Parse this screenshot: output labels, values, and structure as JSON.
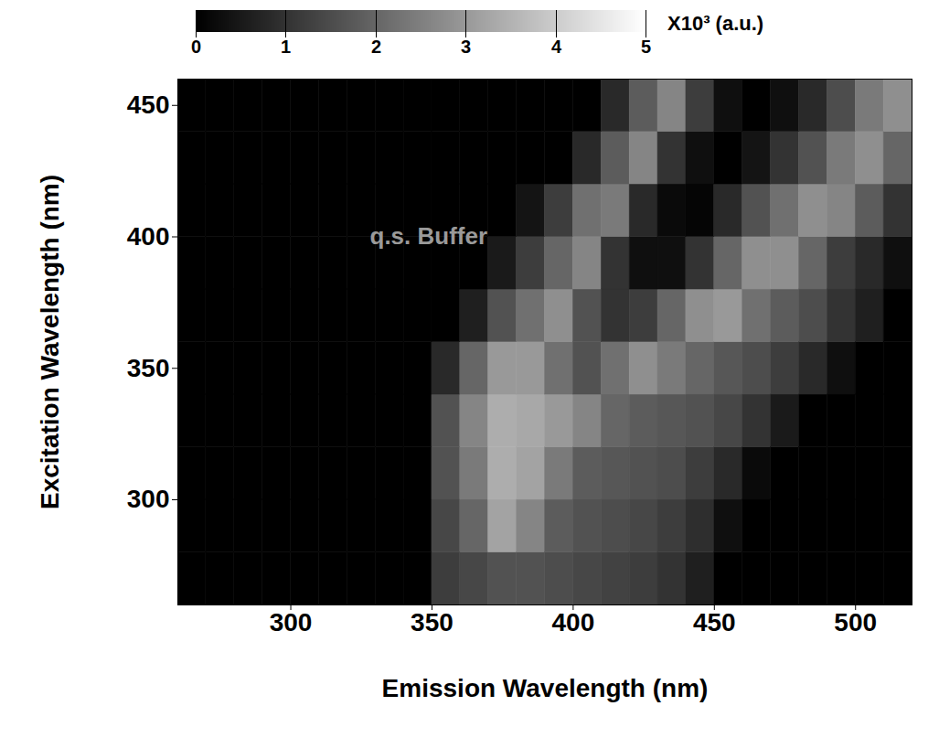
{
  "chart_data": {
    "type": "heatmap",
    "x_label": "Emission Wavelength (nm)",
    "y_label": "Excitation Wavelength (nm)",
    "xlim": [
      260,
      520
    ],
    "ylim": [
      260,
      460
    ],
    "xticks": [
      300,
      350,
      400,
      450,
      500
    ],
    "yticks": [
      300,
      350,
      400,
      450
    ],
    "emission": [
      265,
      275,
      285,
      295,
      305,
      315,
      325,
      335,
      345,
      355,
      365,
      375,
      385,
      395,
      405,
      415,
      425,
      435,
      445,
      455,
      465,
      475,
      485,
      495,
      505,
      515
    ],
    "excitation": [
      270,
      290,
      310,
      330,
      350,
      370,
      390,
      410,
      430,
      450
    ],
    "values": [
      [
        0,
        0,
        0,
        0,
        0,
        0,
        0,
        0,
        0,
        1.2,
        1.4,
        1.6,
        1.6,
        1.5,
        1.4,
        1.3,
        1.2,
        1.0,
        0.6,
        0,
        0,
        0,
        0,
        0,
        0,
        0
      ],
      [
        0,
        0,
        0,
        0,
        0,
        0,
        0,
        0,
        0,
        1.4,
        2.0,
        3.2,
        2.6,
        1.8,
        1.6,
        1.5,
        1.4,
        1.2,
        0.9,
        0.3,
        0,
        0,
        0,
        0,
        0,
        0
      ],
      [
        0,
        0,
        0,
        0,
        0,
        0,
        0,
        0,
        0,
        1.6,
        2.4,
        3.4,
        3.2,
        2.4,
        1.8,
        1.7,
        1.6,
        1.5,
        1.2,
        0.8,
        0.2,
        0,
        0,
        0,
        0,
        0
      ],
      [
        0,
        0,
        0,
        0,
        0,
        0,
        0,
        0,
        0,
        1.6,
        2.6,
        3.4,
        3.3,
        3.0,
        2.6,
        2.0,
        1.8,
        1.7,
        1.6,
        1.4,
        1.0,
        0.5,
        0,
        0,
        0,
        0
      ],
      [
        0,
        0,
        0,
        0,
        0,
        0,
        0,
        0,
        0,
        0.8,
        2.0,
        3.0,
        3.0,
        2.2,
        1.6,
        2.2,
        2.8,
        2.4,
        2.0,
        1.7,
        1.5,
        1.2,
        0.8,
        0.3,
        0,
        0
      ],
      [
        0,
        0,
        0,
        0,
        0,
        0,
        0,
        0,
        0,
        0,
        0.6,
        1.6,
        2.2,
        2.8,
        1.6,
        1.0,
        1.2,
        2.0,
        2.8,
        3.0,
        2.2,
        1.8,
        1.5,
        1.0,
        0.6,
        0
      ],
      [
        0,
        0,
        0,
        0,
        0,
        0,
        0,
        0,
        0,
        0,
        0,
        0.5,
        1.2,
        2.0,
        2.6,
        1.0,
        0.3,
        0.3,
        1.0,
        2.0,
        2.8,
        2.8,
        2.0,
        1.2,
        0.8,
        0.3
      ],
      [
        0,
        0,
        0,
        0,
        0,
        0,
        0,
        0,
        0,
        0,
        0,
        0,
        0.4,
        1.2,
        2.2,
        2.4,
        0.8,
        0.2,
        0.1,
        0.8,
        1.6,
        2.2,
        2.8,
        2.6,
        1.8,
        1.0
      ],
      [
        0,
        0,
        0,
        0,
        0,
        0,
        0,
        0,
        0,
        0,
        0,
        0,
        0,
        0,
        0.8,
        1.8,
        2.6,
        1.0,
        0.3,
        0,
        0.4,
        1.0,
        1.6,
        2.4,
        2.8,
        2.0
      ],
      [
        0,
        0,
        0,
        0,
        0,
        0,
        0,
        0,
        0,
        0,
        0,
        0,
        0,
        0,
        0,
        0.8,
        1.8,
        2.6,
        1.2,
        0.3,
        0,
        0.3,
        0.8,
        1.5,
        2.4,
        2.8
      ]
    ],
    "colorbar": {
      "range": [
        0,
        5
      ],
      "ticks": [
        0,
        1,
        2,
        3,
        4,
        5
      ],
      "label": "X10³ (a.u.)"
    },
    "annotations": [
      {
        "text": "q.s. Buffer",
        "x": 328,
        "y": 400
      }
    ]
  }
}
